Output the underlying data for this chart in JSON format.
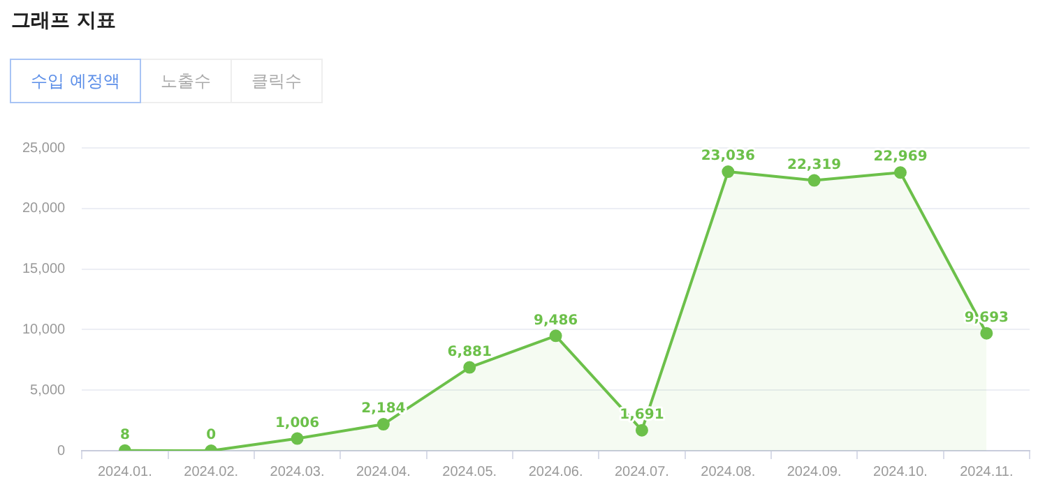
{
  "chart_data": {
    "type": "area",
    "title": "그래프 지표",
    "annotations": [
      "수입 예정액",
      "노출수",
      "클릭수"
    ],
    "categories": [
      "2024.01.",
      "2024.02.",
      "2024.03.",
      "2024.04.",
      "2024.05.",
      "2024.06.",
      "2024.07.",
      "2024.08.",
      "2024.09.",
      "2024.10.",
      "2024.11."
    ],
    "series": [
      {
        "color": "#6cc04a",
        "values": [
          8,
          0,
          1006,
          2184,
          6881,
          9486,
          1691,
          23036,
          22319,
          22969,
          9693
        ],
        "value_labels": [
          "8",
          "0",
          "1,006",
          "2,184",
          "6,881",
          "9,486",
          "1,691",
          "23,036",
          "22,319",
          "22,969",
          "9,693"
        ]
      }
    ],
    "ylim": [
      0,
      25000
    ],
    "yticks": [
      {
        "value": 0,
        "label": "0"
      },
      {
        "value": 5000,
        "label": "5,000"
      },
      {
        "value": 10000,
        "label": "10,000"
      },
      {
        "value": 15000,
        "label": "15,000"
      },
      {
        "value": 20000,
        "label": "20,000"
      },
      {
        "value": 25000,
        "label": "25,000"
      }
    ],
    "grid": "y",
    "legend": false,
    "marker": "circle",
    "line_style": "solid"
  }
}
